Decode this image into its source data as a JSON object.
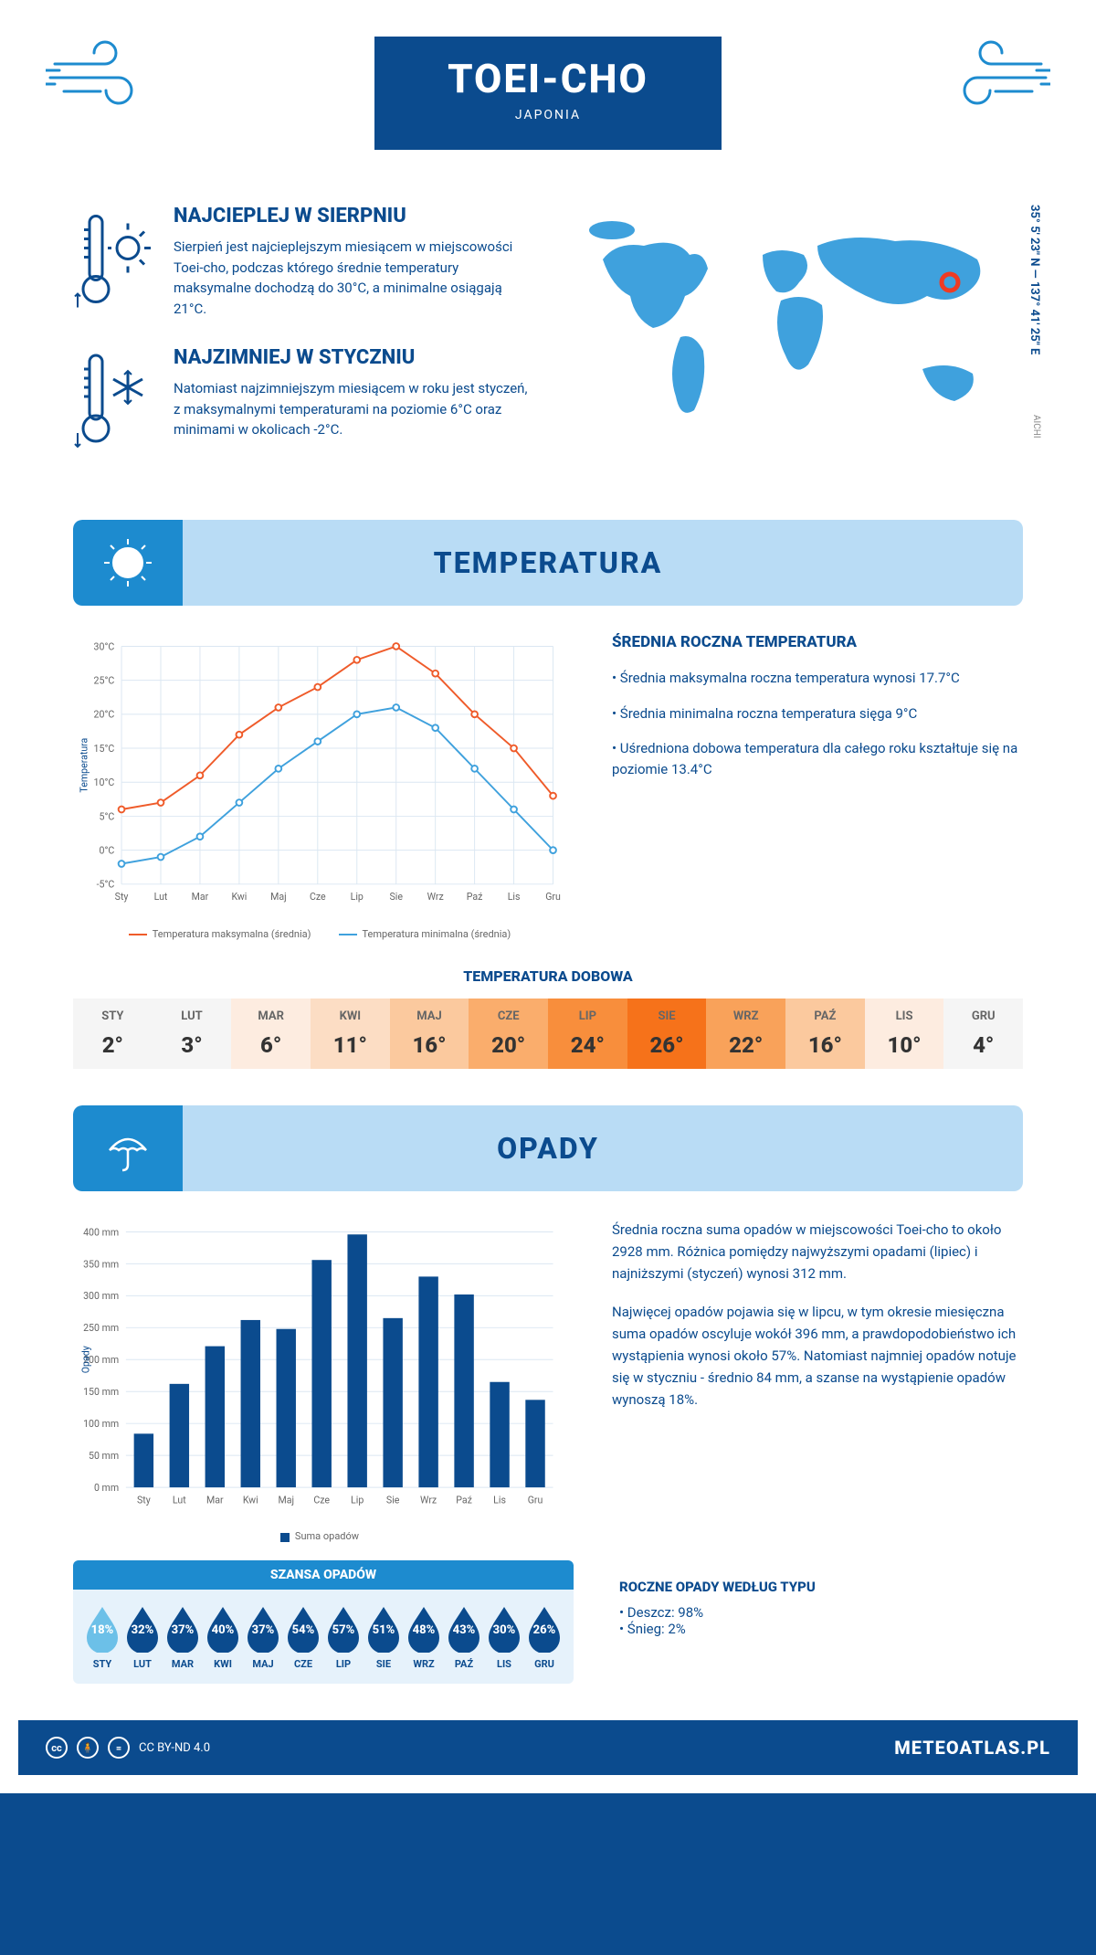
{
  "header": {
    "title": "TOEI-CHO",
    "subtitle": "JAPONIA",
    "coords": "35° 5' 23\" N — 137° 41' 25\" E",
    "region": "AICHI"
  },
  "colors": {
    "primary": "#0b4b8e",
    "accent": "#1d8bcf",
    "light_bg": "#b9dcf5",
    "max_line": "#ef5b2a",
    "min_line": "#3fa1dd",
    "bar": "#0b4b8e",
    "marker": "#ef3b24"
  },
  "intro": {
    "warm": {
      "title": "NAJCIEPLEJ W SIERPNIU",
      "text": "Sierpień jest najcieplejszym miesiącem w miejscowości Toei-cho, podczas którego średnie temperatury maksymalne dochodzą do 30°C, a minimalne osiągają 21°C."
    },
    "cold": {
      "title": "NAJZIMNIEJ W STYCZNIU",
      "text": "Natomiast najzimniejszym miesiącem w roku jest styczeń, z maksymalnymi temperaturami na poziomie 6°C oraz minimami w okolicach -2°C."
    }
  },
  "months_short": [
    "Sty",
    "Lut",
    "Mar",
    "Kwi",
    "Maj",
    "Cze",
    "Lip",
    "Sie",
    "Wrz",
    "Paź",
    "Lis",
    "Gru"
  ],
  "months_upper": [
    "STY",
    "LUT",
    "MAR",
    "KWI",
    "MAJ",
    "CZE",
    "LIP",
    "SIE",
    "WRZ",
    "PAŹ",
    "LIS",
    "GRU"
  ],
  "temperature": {
    "section_title": "TEMPERATURA",
    "y_title": "Temperatura",
    "ylim": [
      -5,
      30
    ],
    "ytick_step": 5,
    "max_series": [
      6,
      7,
      11,
      17,
      21,
      24,
      28,
      30,
      26,
      20,
      15,
      8
    ],
    "min_series": [
      -2,
      -1,
      2,
      7,
      12,
      16,
      20,
      21,
      18,
      12,
      6,
      0
    ],
    "legend_max": "Temperatura maksymalna (średnia)",
    "legend_min": "Temperatura minimalna (średnia)",
    "summary": {
      "title": "ŚREDNIA ROCZNA TEMPERATURA",
      "p1": "• Średnia maksymalna roczna temperatura wynosi 17.7°C",
      "p2": "• Średnia minimalna roczna temperatura sięga 9°C",
      "p3": "• Uśredniona dobowa temperatura dla całego roku kształtuje się na poziomie 13.4°C"
    },
    "daily": {
      "title": "TEMPERATURA DOBOWA",
      "values": [
        "2°",
        "3°",
        "6°",
        "11°",
        "16°",
        "20°",
        "24°",
        "26°",
        "22°",
        "16°",
        "10°",
        "4°"
      ],
      "colors": [
        "#f5f5f5",
        "#f5f5f5",
        "#fdece0",
        "#fcddc4",
        "#fbc99e",
        "#faad6c",
        "#f88e3c",
        "#f6721a",
        "#f9a25a",
        "#fbc99e",
        "#fdece0",
        "#f5f5f5"
      ]
    }
  },
  "precip": {
    "section_title": "OPADY",
    "y_title": "Opady",
    "ylim": [
      0,
      400
    ],
    "ytick_step": 50,
    "values": [
      84,
      162,
      221,
      262,
      248,
      356,
      396,
      265,
      330,
      302,
      165,
      137
    ],
    "legend": "Suma opadów",
    "text1": "Średnia roczna suma opadów w miejscowości Toei-cho to około 2928 mm. Różnica pomiędzy najwyższymi opadami (lipiec) i najniższymi (styczeń) wynosi 312 mm.",
    "text2": "Najwięcej opadów pojawia się w lipcu, w tym okresie miesięczna suma opadów oscyluje wokół 396 mm, a prawdopodobieństwo ich wystąpienia wynosi około 57%. Natomiast najmniej opadów notuje się w styczniu - średnio 84 mm, a szanse na wystąpienie opadów wynoszą 18%.",
    "chance": {
      "title": "SZANSA OPADÓW",
      "values": [
        "18%",
        "32%",
        "37%",
        "40%",
        "37%",
        "54%",
        "57%",
        "51%",
        "48%",
        "43%",
        "30%",
        "26%"
      ],
      "colors": [
        "#6cc0e8",
        "#0b4b8e",
        "#0b4b8e",
        "#0b4b8e",
        "#0b4b8e",
        "#0b4b8e",
        "#0b4b8e",
        "#0b4b8e",
        "#0b4b8e",
        "#0b4b8e",
        "#0b4b8e",
        "#0b4b8e"
      ]
    },
    "by_type": {
      "title": "ROCZNE OPADY WEDŁUG TYPU",
      "rain": "• Deszcz: 98%",
      "snow": "• Śnieg: 2%"
    }
  },
  "footer": {
    "license": "CC BY-ND 4.0",
    "site": "METEOATLAS.PL"
  }
}
